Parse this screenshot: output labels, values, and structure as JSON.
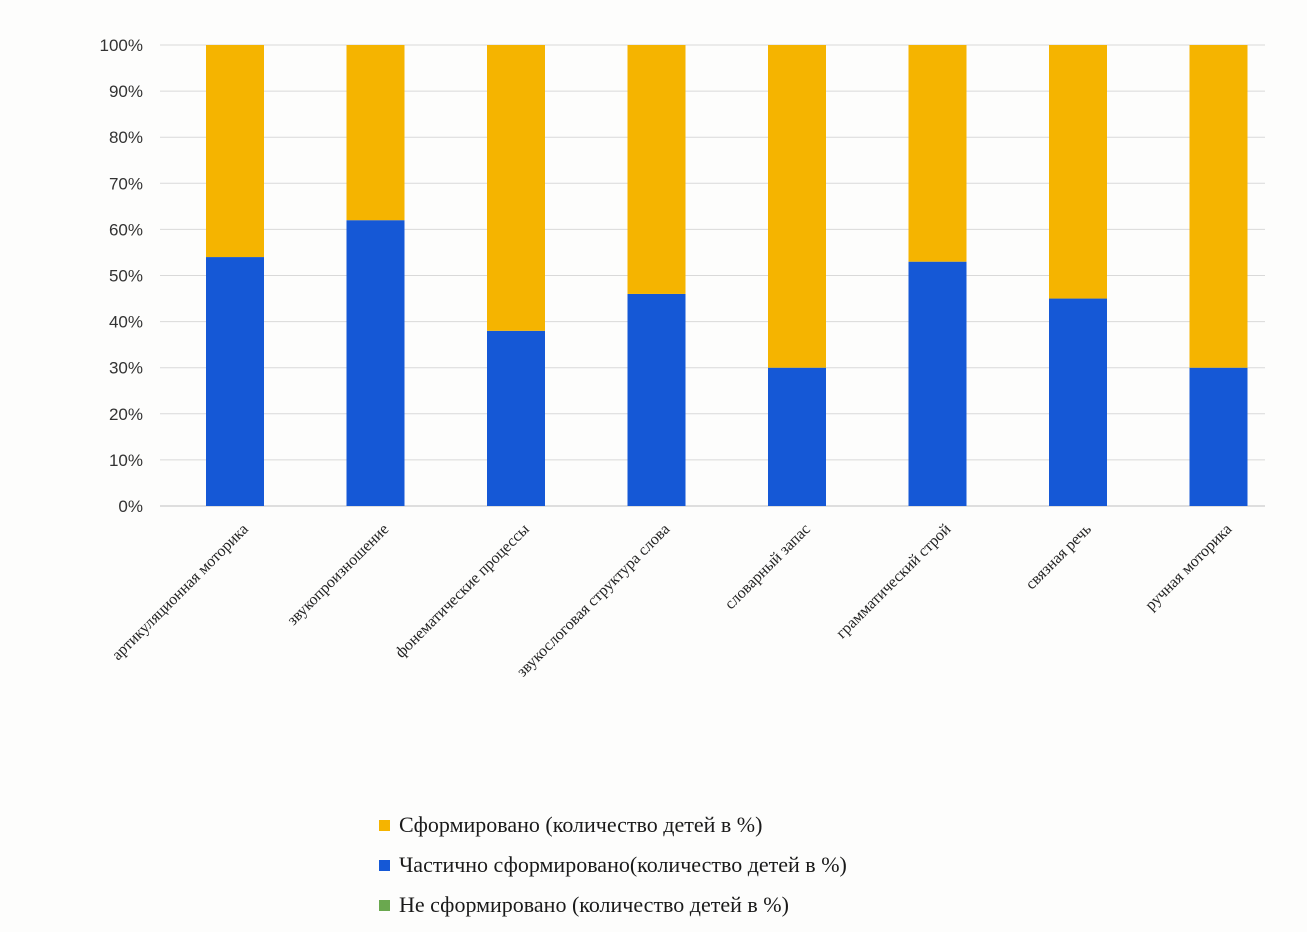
{
  "chart_data": {
    "type": "bar",
    "stacked": true,
    "percent_stacked": true,
    "categories": [
      "артикуляционная моторика",
      "звукопроизношение",
      "фонематические процессы",
      "звукослоговая структура слова",
      "словарный запас",
      "грамматический строй",
      "связная речь",
      "ручная моторика"
    ],
    "series": [
      {
        "name": "Частично сформировано(количество детей в %)",
        "color": "#1558d6",
        "values": [
          54,
          62,
          38,
          46,
          30,
          53,
          45,
          30
        ]
      },
      {
        "name": "Сформировано (количество детей в %)",
        "color": "#f5b400",
        "values": [
          46,
          38,
          62,
          54,
          70,
          47,
          55,
          70
        ]
      },
      {
        "name": "Не сформировано (количество детей в %)",
        "color": "#6aa84f",
        "values": [
          0,
          0,
          0,
          0,
          0,
          0,
          0,
          0
        ]
      }
    ],
    "ylim": [
      0,
      100
    ],
    "yticks": [
      "0%",
      "10%",
      "20%",
      "30%",
      "40%",
      "50%",
      "60%",
      "70%",
      "80%",
      "90%",
      "100%"
    ],
    "grid": true,
    "legend": {
      "placement": "bottom-center",
      "order": [
        "Сформировано (количество детей в %)",
        "Частично сформировано(количество детей в %)",
        "Не сформировано (количество детей в %)"
      ]
    }
  }
}
